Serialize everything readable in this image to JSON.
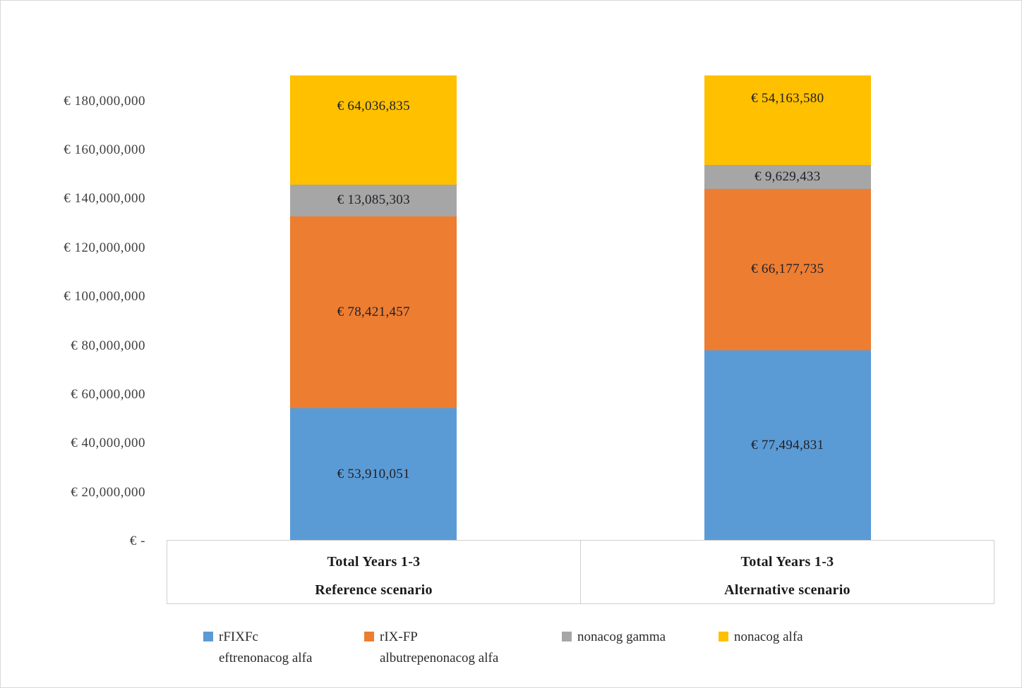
{
  "chart_data": {
    "type": "bar",
    "stacked": true,
    "title": "",
    "currency": "EUR",
    "axis": {
      "ymin": 0,
      "ymax": 190000000,
      "gridlines": false,
      "clipped_at_top": true
    },
    "yticks": [
      {
        "value": 0,
        "label": "€ -"
      },
      {
        "value": 20000000,
        "label": "€ 20,000,000"
      },
      {
        "value": 40000000,
        "label": "€ 40,000,000"
      },
      {
        "value": 60000000,
        "label": "€ 60,000,000"
      },
      {
        "value": 80000000,
        "label": "€ 80,000,000"
      },
      {
        "value": 100000000,
        "label": "€ 100,000,000"
      },
      {
        "value": 120000000,
        "label": "€ 120,000,000"
      },
      {
        "value": 140000000,
        "label": "€ 140,000,000"
      },
      {
        "value": 160000000,
        "label": "€ 160,000,000"
      },
      {
        "value": 180000000,
        "label": "€ 180,000,000"
      }
    ],
    "categories": [
      {
        "id": "reference",
        "line1": "Total Years 1-3",
        "line2": "Reference scenario"
      },
      {
        "id": "alternative",
        "line1": "Total Years 1-3",
        "line2": "Alternative scenario"
      }
    ],
    "series": [
      {
        "id": "rfixfc",
        "legend": [
          "rFIXFc",
          "eftrenonacog alfa"
        ],
        "color": "#5B9BD5",
        "values": [
          53910051,
          77494831
        ],
        "labels": [
          "€ 53,910,051",
          "€ 77,494,831"
        ]
      },
      {
        "id": "rix-fp",
        "legend": [
          "rIX-FP",
          "albutrepenonacog alfa"
        ],
        "color": "#ED7D31",
        "values": [
          78421457,
          66177735
        ],
        "labels": [
          "€ 78,421,457",
          "€ 66,177,735"
        ]
      },
      {
        "id": "nonacog-gamma",
        "legend": [
          "nonacog gamma"
        ],
        "color": "#A6A6A6",
        "values": [
          13085303,
          9629433
        ],
        "labels": [
          "€ 13,085,303",
          "€ 9,629,433"
        ]
      },
      {
        "id": "nonacog-alfa",
        "legend": [
          "nonacog alfa"
        ],
        "color": "#FFC000",
        "values": [
          64036835,
          54163580
        ],
        "labels": [
          "€ 64,036,835",
          "€ 54,163,580"
        ]
      }
    ],
    "legend_position": "bottom"
  }
}
